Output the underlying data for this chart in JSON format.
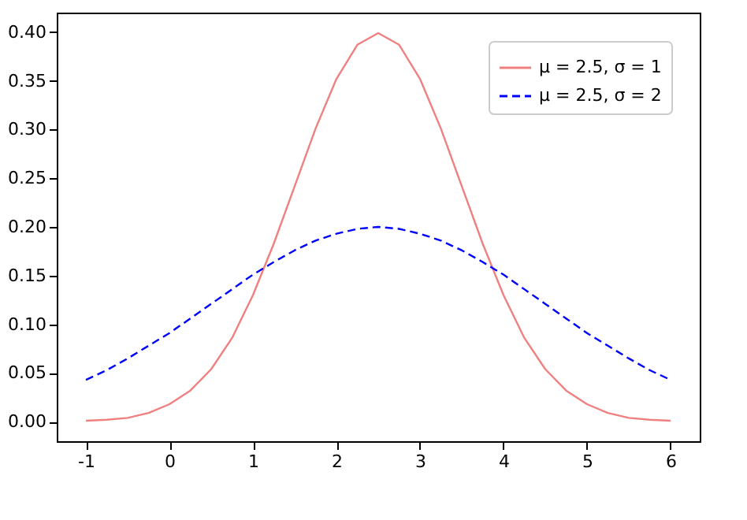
{
  "chart_data": {
    "type": "line",
    "x": [
      -1,
      -0.75,
      -0.5,
      -0.25,
      0,
      0.25,
      0.5,
      0.75,
      1,
      1.25,
      1.5,
      1.75,
      2,
      2.25,
      2.5,
      2.75,
      3,
      3.25,
      3.5,
      3.75,
      4,
      4.25,
      4.5,
      4.75,
      5,
      5.25,
      5.5,
      5.75,
      6
    ],
    "series": [
      {
        "name": "μ = 2.5, σ = 1",
        "color": "#f08080",
        "line_style": "solid",
        "values": [
          0.001,
          0.002,
          0.004,
          0.009,
          0.018,
          0.032,
          0.054,
          0.086,
          0.13,
          0.183,
          0.242,
          0.301,
          0.352,
          0.387,
          0.399,
          0.387,
          0.352,
          0.301,
          0.242,
          0.183,
          0.13,
          0.086,
          0.054,
          0.032,
          0.018,
          0.009,
          0.004,
          0.002,
          0.001
        ]
      },
      {
        "name": "μ = 2.5, σ = 2",
        "color": "#0000ff",
        "line_style": "dashed",
        "values": [
          0.043,
          0.053,
          0.065,
          0.078,
          0.091,
          0.106,
          0.121,
          0.136,
          0.151,
          0.164,
          0.176,
          0.186,
          0.193,
          0.198,
          0.2,
          0.198,
          0.193,
          0.186,
          0.176,
          0.164,
          0.151,
          0.136,
          0.121,
          0.106,
          0.091,
          0.078,
          0.065,
          0.053,
          0.043
        ]
      }
    ],
    "xlim": [
      -1.35,
      6.35
    ],
    "xticks": [
      -1,
      0,
      1,
      2,
      3,
      4,
      5,
      6
    ],
    "ylim": [
      -0.02,
      0.42
    ],
    "yticks": [
      {
        "value": 0,
        "label": "0.00"
      },
      {
        "value": 0.05,
        "label": "0.05"
      },
      {
        "value": 0.1,
        "label": "0.10"
      },
      {
        "value": 0.15,
        "label": "0.15"
      },
      {
        "value": 0.2,
        "label": "0.20"
      },
      {
        "value": 0.25,
        "label": "0.25"
      },
      {
        "value": 0.3,
        "label": "0.30"
      },
      {
        "value": 0.35,
        "label": "0.35"
      },
      {
        "value": 0.4,
        "label": "0.40"
      }
    ],
    "grid": false,
    "legend": "top right"
  }
}
